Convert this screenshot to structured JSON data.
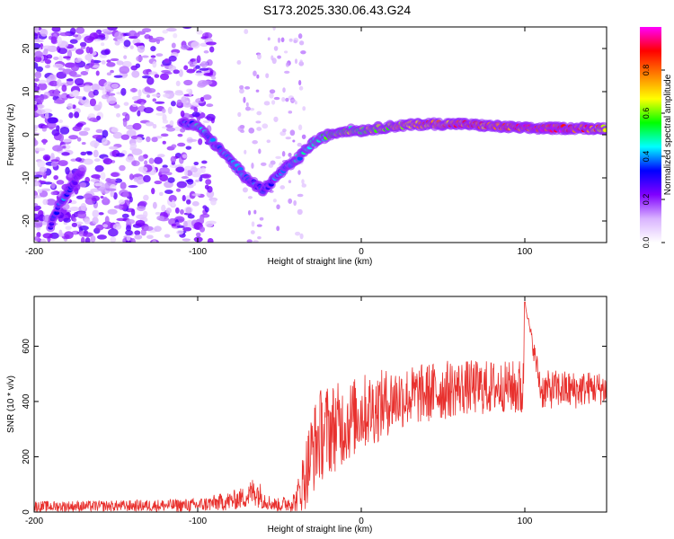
{
  "title": "S173.2025.330.06.43.G24",
  "chart_data": [
    {
      "type": "heatmap",
      "title": "S173.2025.330.06.43.G24",
      "xlabel": "Height of straight line (km)",
      "ylabel": "Frequency (Hz)",
      "xlim": [
        -200,
        150
      ],
      "ylim": [
        -25,
        25
      ],
      "xticks": [
        -200,
        -100,
        0,
        100
      ],
      "yticks": [
        -20,
        -10,
        0,
        10,
        20
      ],
      "colorbar": {
        "label": "Normalized spectral amplitude",
        "range": [
          0,
          1
        ],
        "ticks": [
          0.0,
          0.2,
          0.4,
          0.6,
          0.8
        ],
        "colors": [
          "#ffffff",
          "#d9b3ff",
          "#8000ff",
          "#0000ff",
          "#00ffff",
          "#00ff00",
          "#ffff00",
          "#ff8000",
          "#ff0000",
          "#ff00ff"
        ]
      },
      "ridge_points": [
        {
          "x": -190,
          "y": -21,
          "amp": 0.3
        },
        {
          "x": -183,
          "y": -15,
          "amp": 0.4
        },
        {
          "x": -170,
          "y": -8,
          "amp": 0.2
        },
        {
          "x": -110,
          "y": 3,
          "amp": 0.35
        },
        {
          "x": -100,
          "y": 2,
          "amp": 0.45
        },
        {
          "x": -90,
          "y": -2,
          "amp": 0.4
        },
        {
          "x": -80,
          "y": -6,
          "amp": 0.4
        },
        {
          "x": -70,
          "y": -10,
          "amp": 0.4
        },
        {
          "x": -60,
          "y": -13,
          "amp": 0.35
        },
        {
          "x": -50,
          "y": -9,
          "amp": 0.4
        },
        {
          "x": -40,
          "y": -6,
          "amp": 0.45
        },
        {
          "x": -30,
          "y": -2,
          "amp": 0.5
        },
        {
          "x": -20,
          "y": 0,
          "amp": 0.55
        },
        {
          "x": -10,
          "y": 1,
          "amp": 0.6
        },
        {
          "x": 0,
          "y": 1,
          "amp": 0.6
        },
        {
          "x": 20,
          "y": 2,
          "amp": 0.7
        },
        {
          "x": 40,
          "y": 2.5,
          "amp": 0.8
        },
        {
          "x": 60,
          "y": 2.5,
          "amp": 0.85
        },
        {
          "x": 80,
          "y": 2,
          "amp": 0.8
        },
        {
          "x": 100,
          "y": 1.5,
          "amp": 0.9
        },
        {
          "x": 120,
          "y": 1.5,
          "amp": 0.95
        },
        {
          "x": 140,
          "y": 1.5,
          "amp": 0.85
        },
        {
          "x": 150,
          "y": 1.5,
          "amp": 0.7
        }
      ]
    },
    {
      "type": "line",
      "xlabel": "Height of straight line (km)",
      "ylabel": "SNR (10 * v/v)",
      "xlim": [
        -200,
        150
      ],
      "ylim": [
        0,
        780
      ],
      "xticks": [
        -200,
        -100,
        0,
        100
      ],
      "yticks": [
        0,
        200,
        400,
        600
      ],
      "color": "#e8312e",
      "series": [
        {
          "name": "SNR",
          "x": [
            -200,
            -150,
            -100,
            -80,
            -70,
            -65,
            -60,
            -55,
            -50,
            -40,
            -35,
            -30,
            -25,
            -20,
            -10,
            0,
            10,
            20,
            30,
            40,
            50,
            60,
            70,
            80,
            90,
            99,
            100,
            110,
            120,
            130,
            140,
            150
          ],
          "y": [
            20,
            22,
            25,
            40,
            55,
            80,
            50,
            30,
            25,
            40,
            120,
            220,
            280,
            300,
            320,
            360,
            380,
            410,
            420,
            430,
            440,
            450,
            450,
            450,
            455,
            440,
            760,
            440,
            445,
            440,
            450,
            445
          ],
          "spread": [
            20,
            20,
            25,
            35,
            40,
            60,
            40,
            25,
            25,
            40,
            120,
            160,
            170,
            170,
            150,
            140,
            130,
            120,
            110,
            110,
            110,
            100,
            100,
            100,
            90,
            120,
            0,
            70,
            70,
            70,
            60,
            60
          ]
        }
      ]
    }
  ]
}
